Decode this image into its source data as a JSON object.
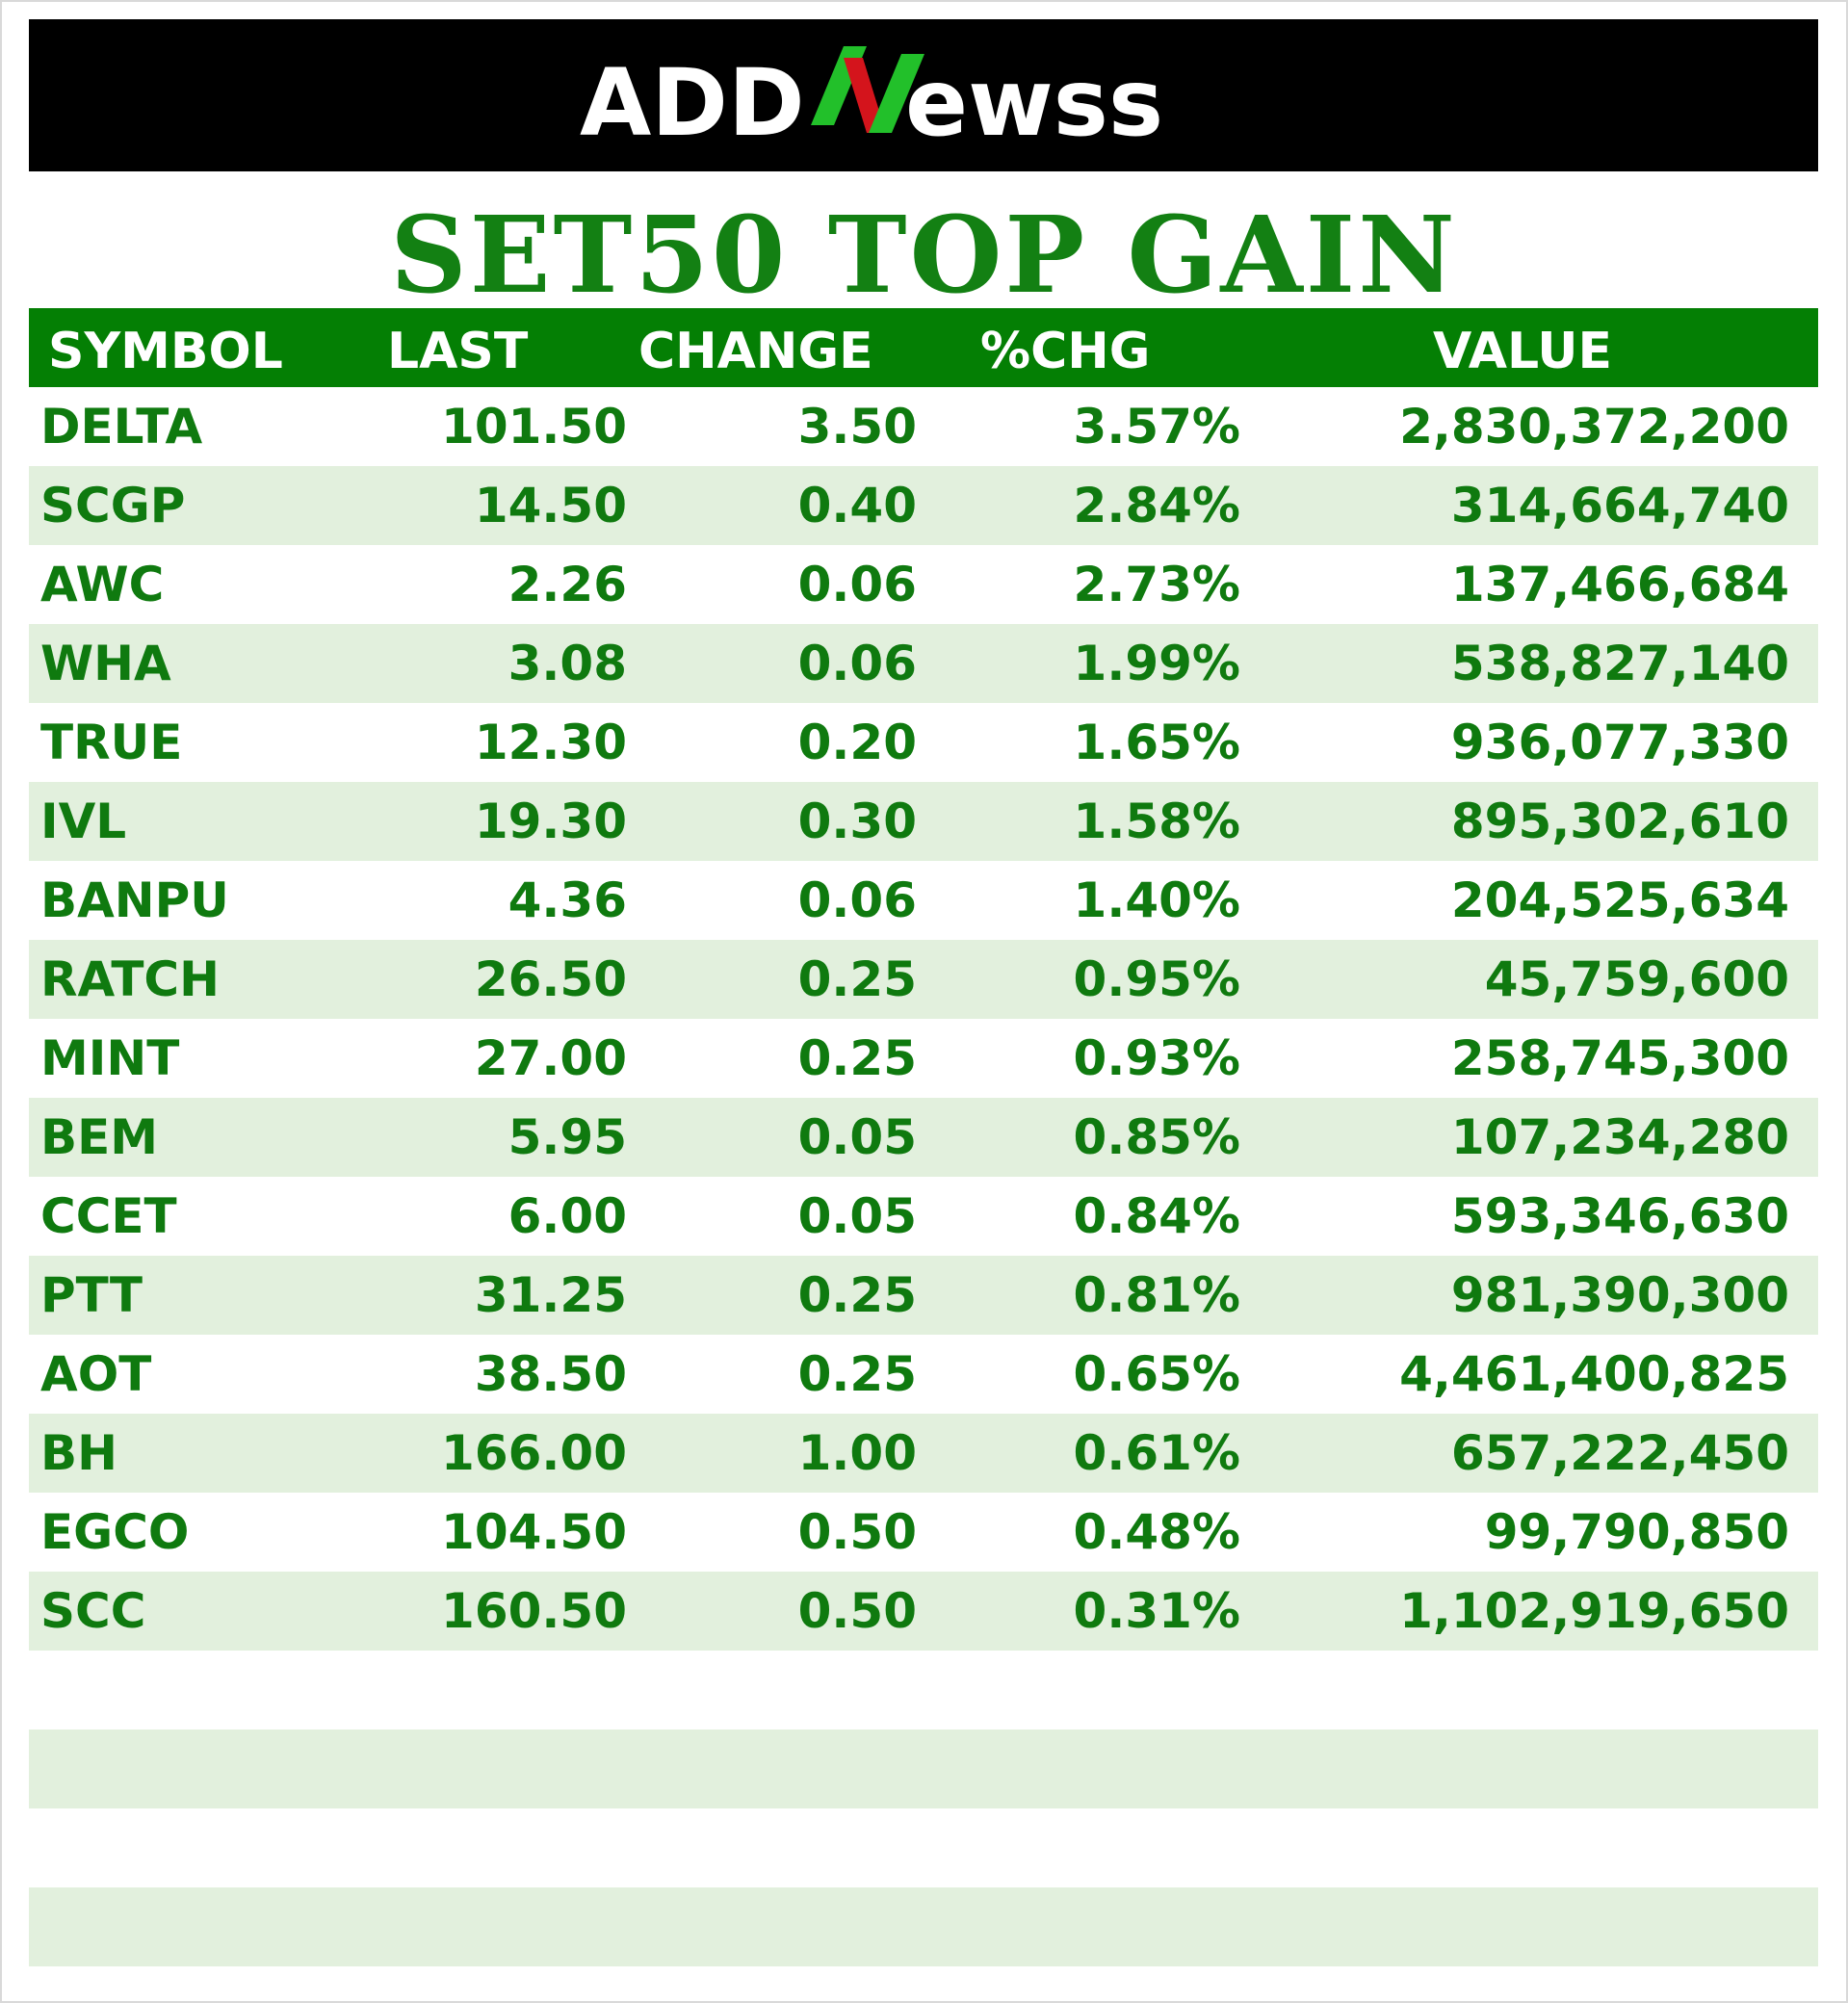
{
  "brand": {
    "logo_text": "ADDNewss"
  },
  "title": "SET50 TOP GAIN",
  "colors": {
    "green_header": "#047f04",
    "green_text": "#0f7a0f",
    "stripe": "#e2f0dd",
    "logo_green": "#22c02a",
    "logo_red": "#d4141c"
  },
  "columns": {
    "symbol": "SYMBOL",
    "last": "LAST",
    "change": "CHANGE",
    "pct": "%CHG",
    "value": "VALUE"
  },
  "rows": [
    {
      "symbol": "DELTA",
      "last": "101.50",
      "change": "3.50",
      "pct": "3.57%",
      "value": "2,830,372,200"
    },
    {
      "symbol": "SCGP",
      "last": "14.50",
      "change": "0.40",
      "pct": "2.84%",
      "value": "314,664,740"
    },
    {
      "symbol": "AWC",
      "last": "2.26",
      "change": "0.06",
      "pct": "2.73%",
      "value": "137,466,684"
    },
    {
      "symbol": "WHA",
      "last": "3.08",
      "change": "0.06",
      "pct": "1.99%",
      "value": "538,827,140"
    },
    {
      "symbol": "TRUE",
      "last": "12.30",
      "change": "0.20",
      "pct": "1.65%",
      "value": "936,077,330"
    },
    {
      "symbol": "IVL",
      "last": "19.30",
      "change": "0.30",
      "pct": "1.58%",
      "value": "895,302,610"
    },
    {
      "symbol": "BANPU",
      "last": "4.36",
      "change": "0.06",
      "pct": "1.40%",
      "value": "204,525,634"
    },
    {
      "symbol": "RATCH",
      "last": "26.50",
      "change": "0.25",
      "pct": "0.95%",
      "value": "45,759,600"
    },
    {
      "symbol": "MINT",
      "last": "27.00",
      "change": "0.25",
      "pct": "0.93%",
      "value": "258,745,300"
    },
    {
      "symbol": "BEM",
      "last": "5.95",
      "change": "0.05",
      "pct": "0.85%",
      "value": "107,234,280"
    },
    {
      "symbol": "CCET",
      "last": "6.00",
      "change": "0.05",
      "pct": "0.84%",
      "value": "593,346,630"
    },
    {
      "symbol": "PTT",
      "last": "31.25",
      "change": "0.25",
      "pct": "0.81%",
      "value": "981,390,300"
    },
    {
      "symbol": "AOT",
      "last": "38.50",
      "change": "0.25",
      "pct": "0.65%",
      "value": "4,461,400,825"
    },
    {
      "symbol": "BH",
      "last": "166.00",
      "change": "1.00",
      "pct": "0.61%",
      "value": "657,222,450"
    },
    {
      "symbol": "EGCO",
      "last": "104.50",
      "change": "0.50",
      "pct": "0.48%",
      "value": "99,790,850"
    },
    {
      "symbol": "SCC",
      "last": "160.50",
      "change": "0.50",
      "pct": "0.31%",
      "value": "1,102,919,650"
    },
    {
      "symbol": "",
      "last": "",
      "change": "",
      "pct": "",
      "value": ""
    },
    {
      "symbol": "",
      "last": "",
      "change": "",
      "pct": "",
      "value": ""
    },
    {
      "symbol": "",
      "last": "",
      "change": "",
      "pct": "",
      "value": ""
    },
    {
      "symbol": "",
      "last": "",
      "change": "",
      "pct": "",
      "value": ""
    }
  ]
}
